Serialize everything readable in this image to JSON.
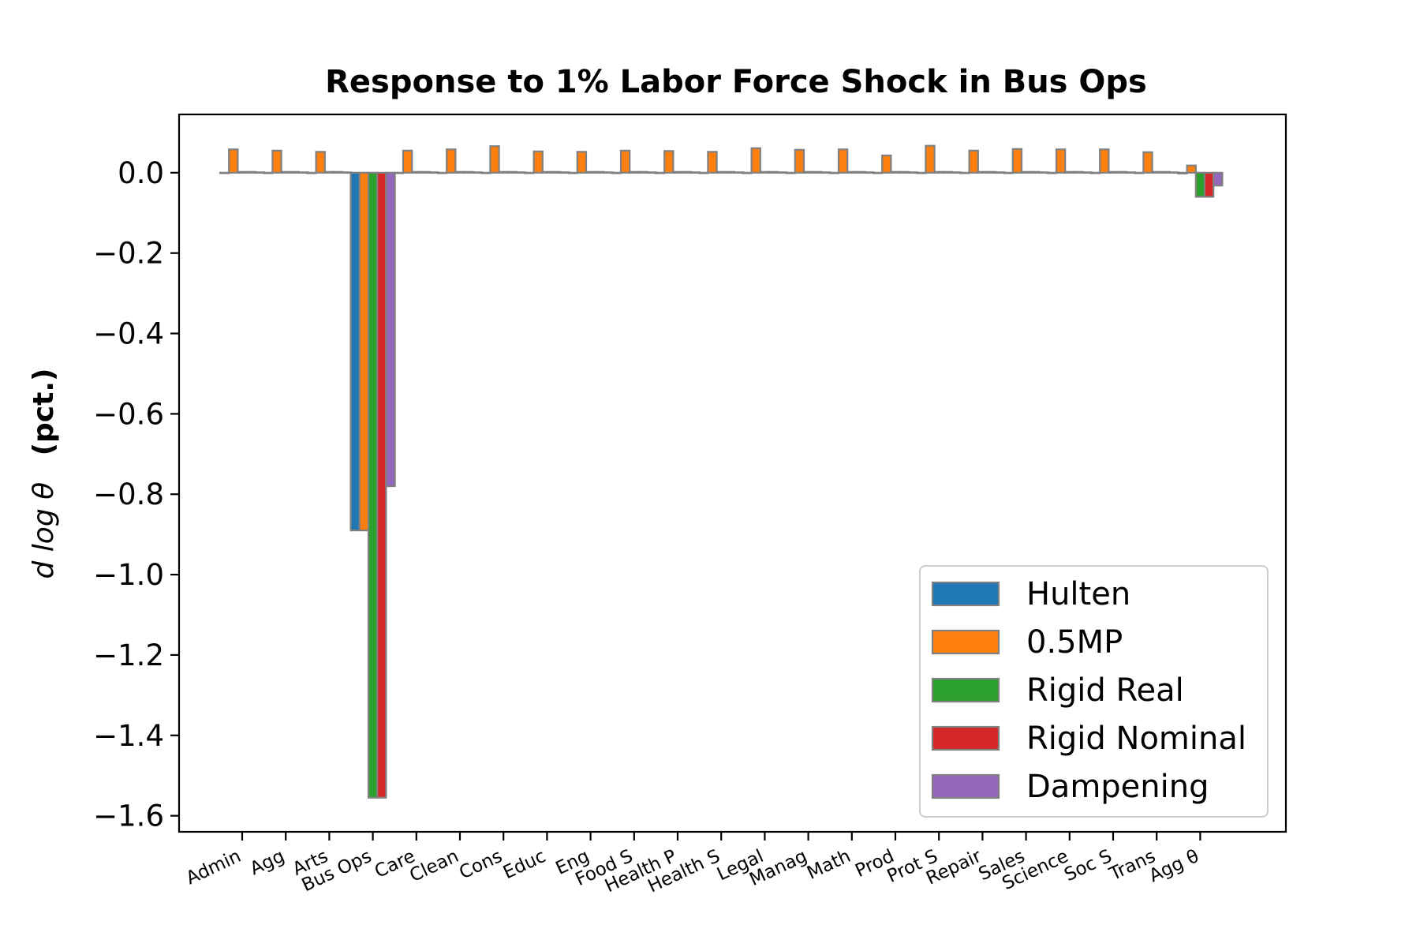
{
  "chart_data": {
    "type": "bar",
    "title": "Response to 1% Labor Force Shock in Bus Ops",
    "ylabel": "d log θ",
    "ylabel_unit": "(pct.)",
    "xlabel": "",
    "ylim": [
      -1.64,
      0.145
    ],
    "yticks": [
      0.0,
      -0.2,
      -0.4,
      -0.6,
      -0.8,
      -1.0,
      -1.2,
      -1.4,
      -1.6
    ],
    "ytick_labels": [
      "0.0",
      "−0.2",
      "−0.4",
      "−0.6",
      "−0.8",
      "−1.0",
      "−1.2",
      "−1.4",
      "−1.6"
    ],
    "grid": false,
    "legend_position": "lower-right",
    "categories": [
      "Admin",
      "Agg",
      "Arts",
      "Bus Ops",
      "Care",
      "Clean",
      "Cons",
      "Educ",
      "Eng",
      "Food S",
      "Health P",
      "Health S",
      "Legal",
      "Manag",
      "Math",
      "Prod",
      "Prot S",
      "Repair",
      "Sales",
      "Science",
      "Soc S",
      "Trans",
      "Agg θ"
    ],
    "series": [
      {
        "name": "Hulten",
        "color": "#1f77b4",
        "values": [
          0,
          0,
          0,
          -0.89,
          0,
          0,
          0,
          0,
          0,
          0,
          0,
          0,
          0,
          0,
          0,
          0,
          0,
          0,
          0,
          0,
          0,
          0,
          -0.002
        ]
      },
      {
        "name": "0.5MP",
        "color": "#ff7f0e",
        "values": [
          0.058,
          0.055,
          0.052,
          -0.89,
          0.055,
          0.058,
          0.066,
          0.053,
          0.052,
          0.055,
          0.054,
          0.052,
          0.061,
          0.057,
          0.058,
          0.043,
          0.067,
          0.055,
          0.059,
          0.058,
          0.058,
          0.051,
          0.018
        ]
      },
      {
        "name": "Rigid Real",
        "color": "#2ca02c",
        "values": [
          0.002,
          0.002,
          0.002,
          -1.555,
          0.002,
          0.002,
          0.002,
          0.002,
          0.002,
          0.002,
          0.002,
          0.002,
          0.002,
          0.002,
          0.002,
          0.002,
          0.002,
          0.002,
          0.002,
          0.002,
          0.002,
          0.002,
          -0.06
        ]
      },
      {
        "name": "Rigid Nominal",
        "color": "#d62728",
        "values": [
          0.002,
          0.002,
          0.002,
          -1.555,
          0.002,
          0.002,
          0.002,
          0.002,
          0.002,
          0.002,
          0.002,
          0.002,
          0.002,
          0.002,
          0.002,
          0.002,
          0.002,
          0.002,
          0.002,
          0.002,
          0.002,
          0.002,
          -0.06
        ]
      },
      {
        "name": "Dampening",
        "color": "#9467bd",
        "values": [
          0.001,
          0.001,
          0.001,
          -0.78,
          0.001,
          0.001,
          0.001,
          0.001,
          0.001,
          0.001,
          0.001,
          0.001,
          0.001,
          0.001,
          0.001,
          0.001,
          0.001,
          0.001,
          0.001,
          0.001,
          0.001,
          0.001,
          -0.032
        ]
      }
    ]
  }
}
